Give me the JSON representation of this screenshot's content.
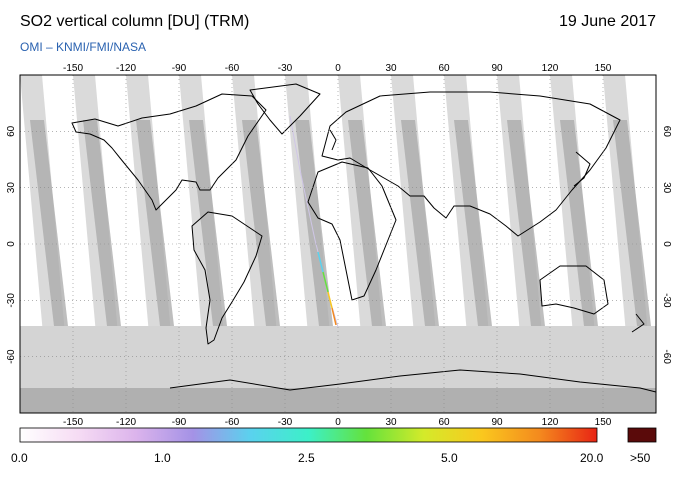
{
  "header": {
    "title": "SO2 vertical column [DU] (TRM)",
    "date": "19 June 2017",
    "credit": "OMI  –  KNMI/FMI/NASA"
  },
  "map": {
    "projection": "equirectangular",
    "lon_ticks": [
      "-150",
      "-120",
      "-90",
      "-60",
      "-30",
      "0",
      "30",
      "60",
      "90",
      "120",
      "150"
    ],
    "lat_ticks": [
      "60",
      "30",
      "0",
      "-30",
      "-60"
    ],
    "colors": {
      "background": "#ffffff",
      "no_data_gray": "#d4d4d4",
      "swath_dark": "#a8a8a8",
      "polar_night": "#b0b0b0",
      "coastline": "#000000",
      "grid": "#888888"
    }
  },
  "colorbar": {
    "labels": [
      "0.0",
      "1.0",
      "2.5",
      "5.0",
      "20.0",
      ">50"
    ],
    "overflow_color": "#5a0a0a",
    "gradient_colors": [
      "#ffffff",
      "#f6dcf4",
      "#dcb4ec",
      "#a492e6",
      "#5ad2ee",
      "#3cf0c8",
      "#64e23c",
      "#d4ea2a",
      "#fac81e",
      "#f48a1e",
      "#e82414"
    ]
  }
}
